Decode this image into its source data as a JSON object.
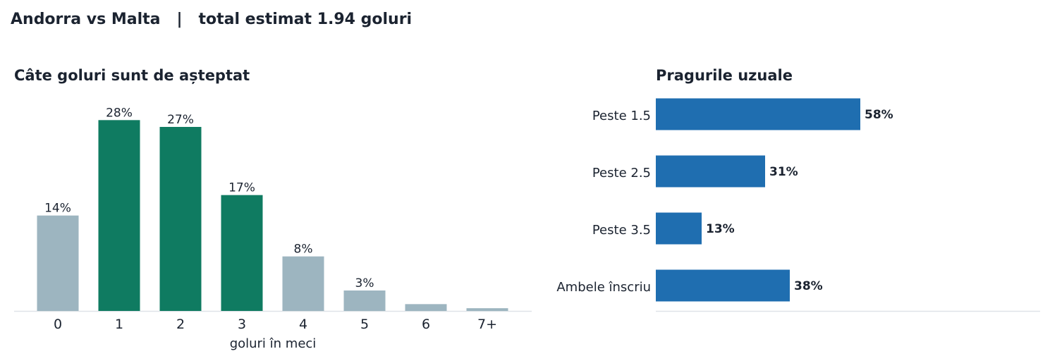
{
  "header": {
    "title": "Andorra vs Malta   |   total estimat 1.94 goluri"
  },
  "colors": {
    "highlight": "#0f7b61",
    "muted": "#9db5c0",
    "bar_blue": "#1f6eb0",
    "axis": "#dfe3e8",
    "text": "#1b2330"
  },
  "chart_data": [
    {
      "type": "bar",
      "title": "Câte goluri sunt de așteptat",
      "xlabel": "goluri în meci",
      "ylabel": "",
      "categories": [
        "0",
        "1",
        "2",
        "3",
        "4",
        "5",
        "6",
        "7+"
      ],
      "values": [
        14,
        28,
        27,
        17,
        8,
        3,
        1,
        0.4
      ],
      "labels": [
        "14%",
        "28%",
        "27%",
        "17%",
        "8%",
        "3%",
        "",
        ""
      ],
      "highlighted": [
        false,
        true,
        true,
        true,
        false,
        false,
        false,
        false
      ],
      "ylim": [
        0,
        30
      ],
      "grid": false
    },
    {
      "type": "bar",
      "orientation": "horizontal",
      "title": "Pragurile uzuale",
      "categories": [
        "Peste 1.5",
        "Peste 2.5",
        "Peste 3.5",
        "Ambele înscriu"
      ],
      "values": [
        58,
        31,
        13,
        38
      ],
      "labels": [
        "58%",
        "31%",
        "13%",
        "38%"
      ],
      "xlim": [
        0,
        109
      ],
      "grid": false
    }
  ]
}
